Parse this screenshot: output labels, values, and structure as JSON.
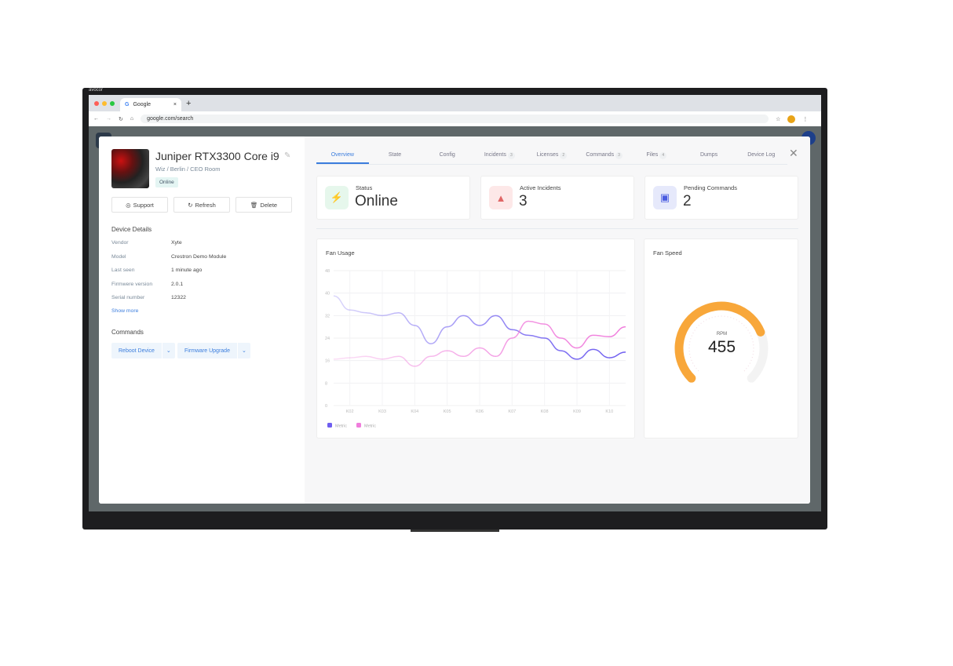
{
  "monitor": {
    "brand": "avocor"
  },
  "browser": {
    "tab_title": "Google",
    "url": "google.com/search"
  },
  "device": {
    "name": "Juniper RTX3300 Core i9",
    "path": "Wiz / Berlin / CEO Room",
    "status_badge": "Online"
  },
  "actions": {
    "support": "Support",
    "refresh": "Refresh",
    "delete": "Delete"
  },
  "details": {
    "heading": "Device Details",
    "rows": [
      {
        "label": "Vendor",
        "value": "Xyte"
      },
      {
        "label": "Model",
        "value": "Crestron Demo Module"
      },
      {
        "label": "Last seen",
        "value": "1 minute ago"
      },
      {
        "label": "Firmwere version",
        "value": "2.0.1"
      },
      {
        "label": "Serial number",
        "value": "12322"
      }
    ],
    "show_more": "Show more"
  },
  "commands": {
    "heading": "Commands",
    "items": [
      "Reboot Device",
      "Firmware Upgrade"
    ]
  },
  "tabs": [
    {
      "label": "Overview",
      "active": true
    },
    {
      "label": "State"
    },
    {
      "label": "Config"
    },
    {
      "label": "Incidents",
      "count": "3"
    },
    {
      "label": "Licenses",
      "count": "2"
    },
    {
      "label": "Commands",
      "count": "3"
    },
    {
      "label": "Files",
      "count": "4"
    },
    {
      "label": "Dumps"
    },
    {
      "label": "Device Log"
    }
  ],
  "stats": [
    {
      "label": "Status",
      "value": "Online",
      "icon": "bolt-icon",
      "color": "#2fbf5a",
      "bg": "#e6f7ec"
    },
    {
      "label": "Active Incidents",
      "value": "3",
      "icon": "warning-icon",
      "color": "#e06666",
      "bg": "#fde8e8"
    },
    {
      "label": "Pending Commands",
      "value": "2",
      "icon": "code-window-icon",
      "color": "#4a5ce0",
      "bg": "#e6e9fb"
    }
  ],
  "fan_speed": {
    "title": "Fan Speed",
    "unit": "RPM",
    "value": "455",
    "fill_fraction": 0.75,
    "color": "#f8a73a"
  },
  "chart_data": {
    "type": "line",
    "title": "Fan Usage",
    "xlabel": "",
    "ylabel": "",
    "x": [
      1.5,
      2,
      2.5,
      3,
      3.5,
      4,
      4.5,
      5,
      5.5,
      6,
      6.5,
      7,
      7.5,
      8,
      8.5,
      9,
      9.5,
      10,
      10.5
    ],
    "xtick_labels": [
      "K02",
      "K03",
      "K04",
      "K05",
      "K06",
      "K07",
      "K08",
      "K09",
      "K10"
    ],
    "xticks": [
      2,
      3,
      4,
      5,
      6,
      7,
      8,
      9,
      10
    ],
    "yticks": [
      0,
      8,
      16,
      24,
      32,
      40,
      48
    ],
    "ylim": [
      0,
      48
    ],
    "grid": true,
    "legend": "bottom-left",
    "series": [
      {
        "name": "Metric",
        "color": "#6f5ef0",
        "values": [
          39,
          34,
          33,
          32,
          33,
          28.5,
          22,
          28,
          32,
          28.5,
          32,
          27,
          25,
          24,
          19.5,
          16.5,
          20,
          17,
          19
        ]
      },
      {
        "name": "Metric",
        "color": "#f07ddc",
        "values": [
          16.5,
          17,
          17.5,
          16.5,
          17.5,
          14,
          17.5,
          19.5,
          17.5,
          20.5,
          17.5,
          24,
          30,
          29,
          24,
          20.5,
          25,
          24.5,
          28
        ]
      }
    ]
  }
}
